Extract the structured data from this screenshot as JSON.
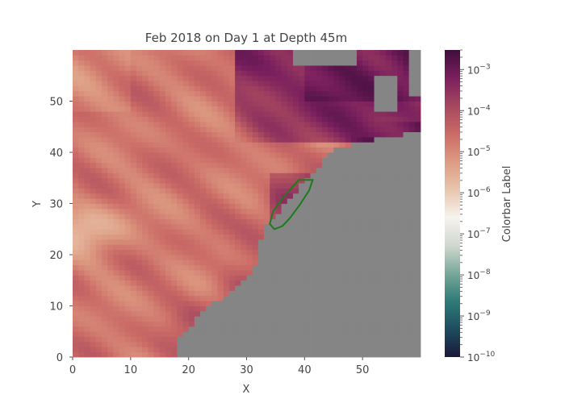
{
  "chart_data": {
    "type": "heatmap",
    "title": "Feb 2018 on Day 1 at Depth 45m",
    "xlabel": "X",
    "ylabel": "Y",
    "xlim": [
      0,
      60
    ],
    "ylim": [
      0,
      60
    ],
    "xticks": [
      0,
      10,
      20,
      30,
      40,
      50
    ],
    "yticks": [
      0,
      10,
      20,
      30,
      40,
      50
    ],
    "grid": false,
    "land_color": "#858585",
    "outline_color": "#1e7a1e",
    "region_outline": [
      [
        34.8,
        25.0
      ],
      [
        36.2,
        25.6
      ],
      [
        37.5,
        27.2
      ],
      [
        39.2,
        29.8
      ],
      [
        40.8,
        32.6
      ],
      [
        41.4,
        34.6
      ],
      [
        39.0,
        34.6
      ],
      [
        36.5,
        31.5
      ],
      [
        34.6,
        28.5
      ],
      [
        34.0,
        26.0
      ]
    ],
    "colorbar": {
      "label": "Colorbar Label",
      "scale": "log",
      "range": [
        1e-10,
        0.003
      ],
      "ticks": [
        {
          "value": -10,
          "mantissa": "10",
          "exponent": "−10"
        },
        {
          "value": -9,
          "mantissa": "10",
          "exponent": "−9"
        },
        {
          "value": -8,
          "mantissa": "10",
          "exponent": "−8"
        },
        {
          "value": -7,
          "mantissa": "10",
          "exponent": "−7"
        },
        {
          "value": -6,
          "mantissa": "10",
          "exponent": "−6"
        },
        {
          "value": -5,
          "mantissa": "10",
          "exponent": "−5"
        },
        {
          "value": -4,
          "mantissa": "10",
          "exponent": "−4"
        },
        {
          "value": -3,
          "mantissa": "10",
          "exponent": "−3"
        }
      ],
      "colormap": [
        "#1b1838",
        "#1d4c60",
        "#2e7c78",
        "#79a89a",
        "#d1d8cf",
        "#f7f3ee",
        "#e8c5ad",
        "#dd9b82",
        "#cb6b66",
        "#a6475f",
        "#7a1f5e",
        "#3f0e3c"
      ]
    }
  }
}
